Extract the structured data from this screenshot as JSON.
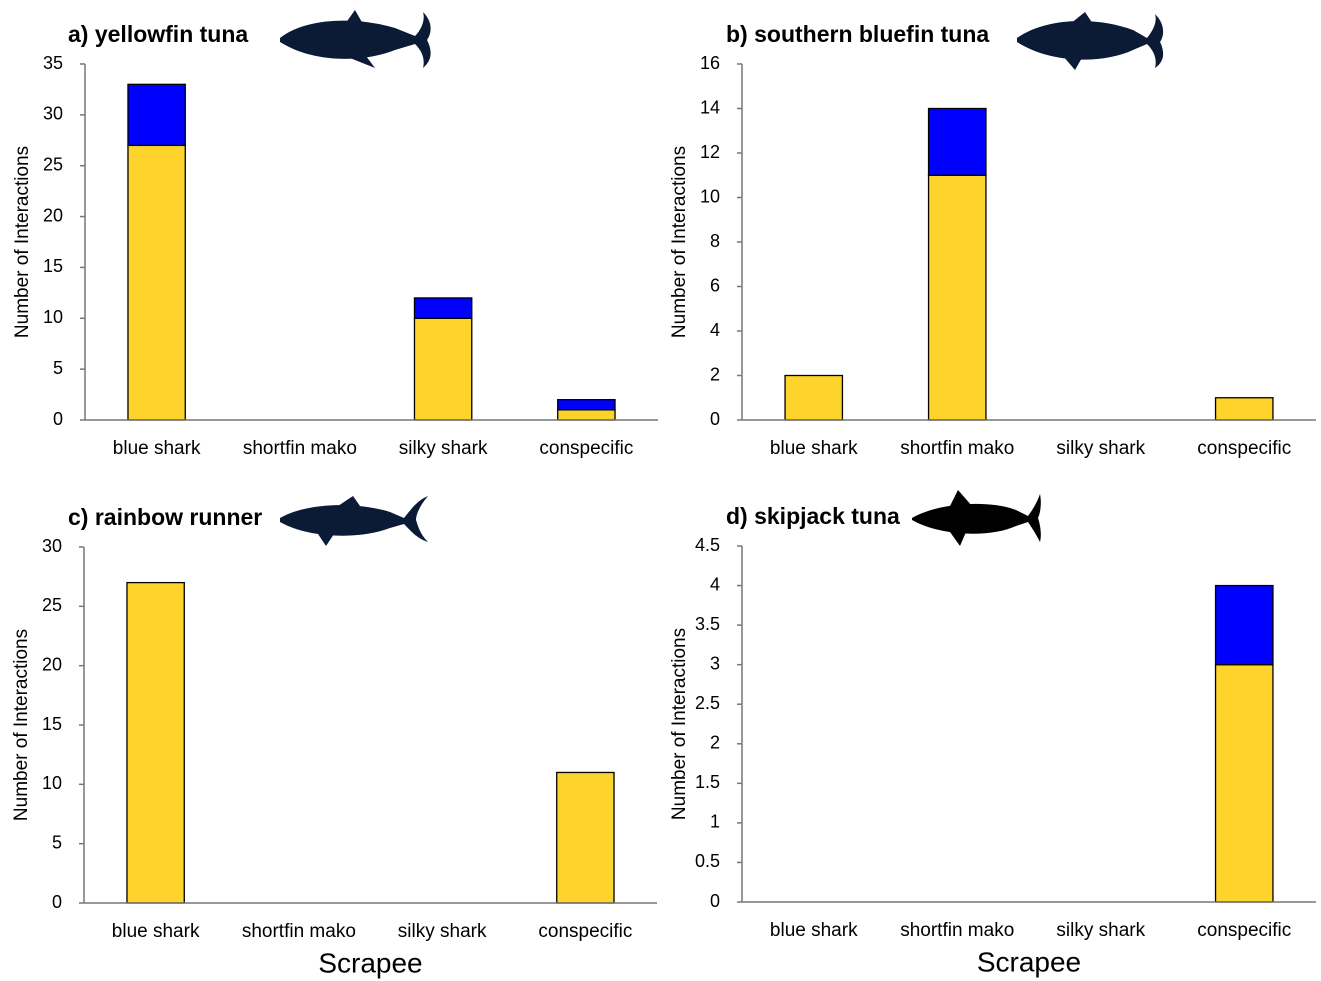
{
  "chart_data": [
    {
      "type": "bar",
      "stacked": true,
      "title": "a) yellowfin tuna",
      "y_label": "Number of Interactions",
      "categories": [
        "blue shark",
        "shortfin mako",
        "silky shark",
        "conspecific"
      ],
      "series": [
        {
          "color": "#fdd32c",
          "values": [
            27,
            0,
            10,
            1
          ]
        },
        {
          "color": "#0000ff",
          "values": [
            6,
            0,
            2,
            1
          ]
        }
      ],
      "ylim": [
        0,
        35
      ],
      "yticks": [
        0,
        5,
        10,
        15,
        20,
        25,
        30,
        35
      ]
    },
    {
      "type": "bar",
      "stacked": true,
      "title": "b) southern bluefin tuna",
      "y_label": "Number of Interactions",
      "categories": [
        "blue shark",
        "shortfin mako",
        "silky shark",
        "conspecific"
      ],
      "series": [
        {
          "color": "#fdd32c",
          "values": [
            2,
            11,
            0,
            1
          ]
        },
        {
          "color": "#0000ff",
          "values": [
            0,
            3,
            0,
            0
          ]
        }
      ],
      "ylim": [
        0,
        16
      ],
      "yticks": [
        0,
        2,
        4,
        6,
        8,
        10,
        12,
        14,
        16
      ]
    },
    {
      "type": "bar",
      "stacked": true,
      "title": "c) rainbow runner",
      "y_label": "Number of Interactions",
      "x_label": "Scrapee",
      "categories": [
        "blue shark",
        "shortfin mako",
        "silky shark",
        "conspecific"
      ],
      "series": [
        {
          "color": "#fdd32c",
          "values": [
            27,
            0,
            0,
            11
          ]
        },
        {
          "color": "#0000ff",
          "values": [
            0,
            0,
            0,
            0
          ]
        }
      ],
      "ylim": [
        0,
        30
      ],
      "yticks": [
        0,
        5,
        10,
        15,
        20,
        25,
        30
      ]
    },
    {
      "type": "bar",
      "stacked": true,
      "title": "d) skipjack tuna",
      "y_label": "Number of Interactions",
      "x_label": "Scrapee",
      "categories": [
        "blue shark",
        "shortfin mako",
        "silky shark",
        "conspecific"
      ],
      "series": [
        {
          "color": "#fdd32c",
          "values": [
            0,
            0,
            0,
            3
          ]
        },
        {
          "color": "#0000ff",
          "values": [
            0,
            0,
            0,
            1
          ]
        }
      ],
      "ylim": [
        0,
        4.5
      ],
      "yticks": [
        0,
        0.5,
        1,
        1.5,
        2,
        2.5,
        3,
        3.5,
        4,
        4.5
      ]
    }
  ]
}
